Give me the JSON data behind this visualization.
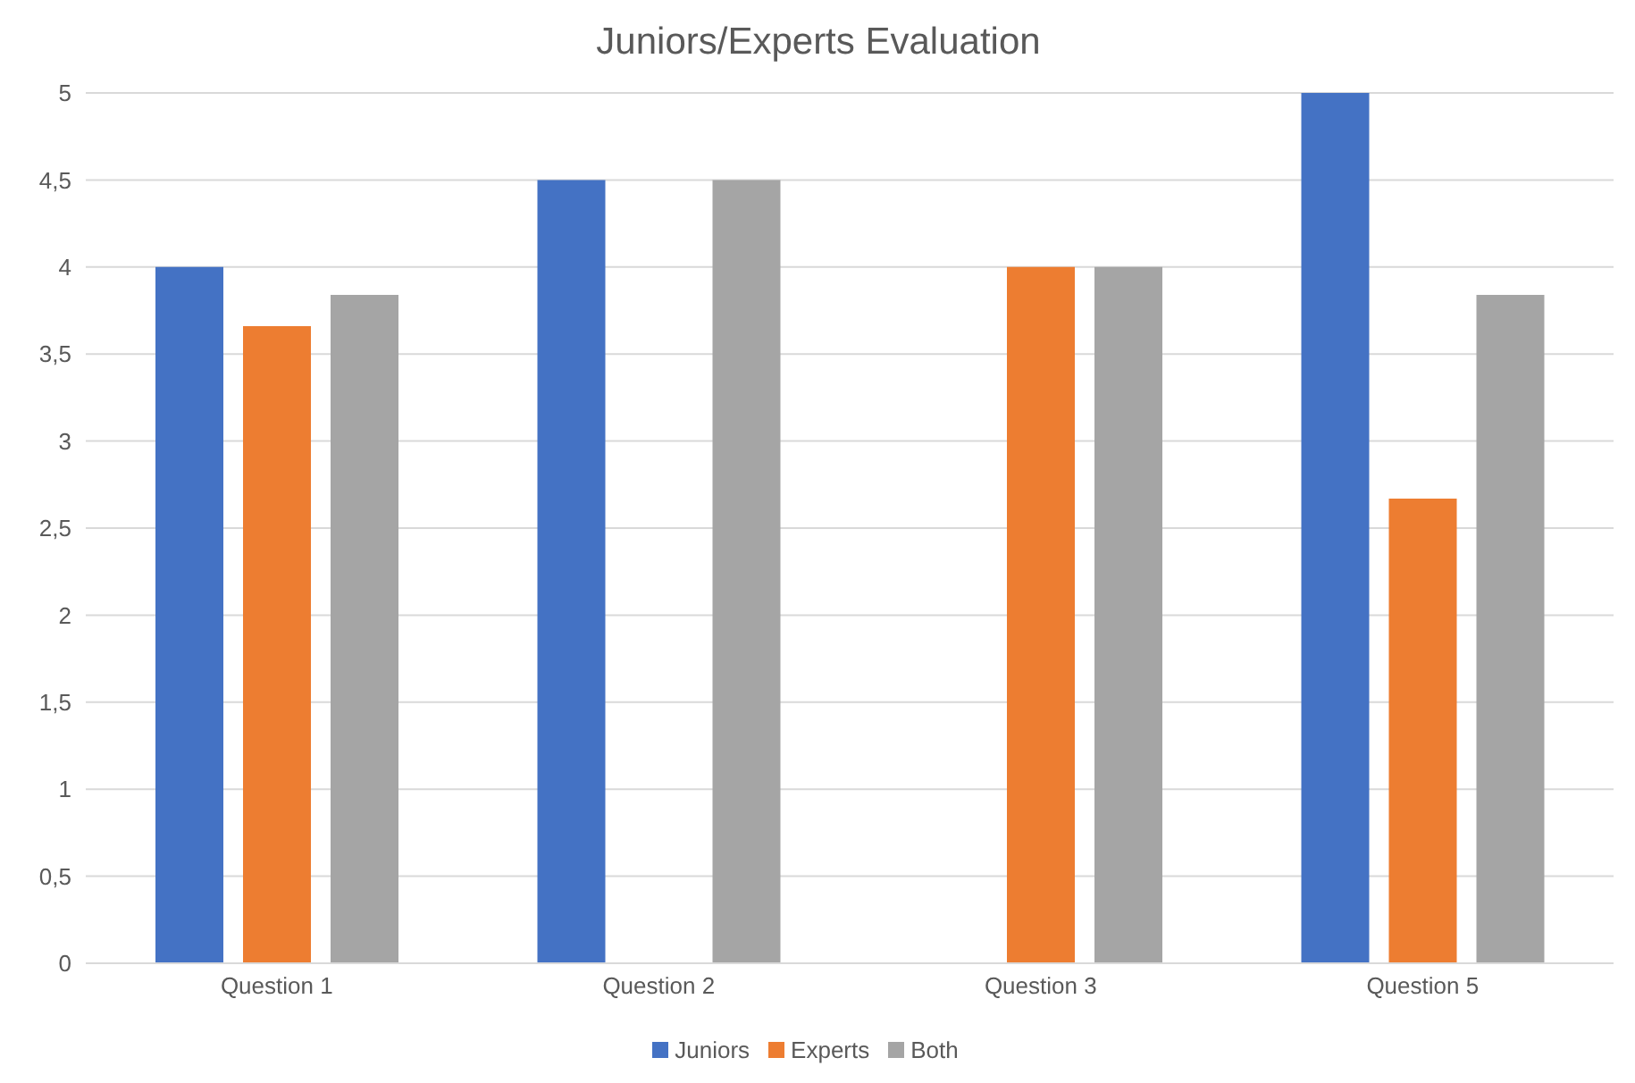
{
  "chart_data": {
    "type": "bar",
    "title": "Juniors/Experts Evaluation",
    "categories": [
      "Question 1",
      "Question 2",
      "Question 3",
      "Question 5"
    ],
    "series": [
      {
        "name": "Juniors",
        "color": "#4472c4",
        "values": [
          4,
          4.5,
          null,
          5
        ]
      },
      {
        "name": "Experts",
        "color": "#ed7d31",
        "values": [
          3.66,
          null,
          4,
          2.67
        ]
      },
      {
        "name": "Both",
        "color": "#a5a5a5",
        "values": [
          3.84,
          4.5,
          4,
          3.84
        ]
      }
    ],
    "ylim": [
      0,
      5
    ],
    "yticks": [
      0,
      {
        "value": 0.5,
        "label": "0,5"
      },
      1,
      {
        "value": 1.5,
        "label": "1,5"
      },
      2,
      {
        "value": 2.5,
        "label": "2,5"
      },
      3,
      {
        "value": 3.5,
        "label": "3,5"
      },
      4,
      {
        "value": 4.5,
        "label": "4,5"
      },
      5
    ],
    "grid": "y",
    "legend": "bottom"
  }
}
